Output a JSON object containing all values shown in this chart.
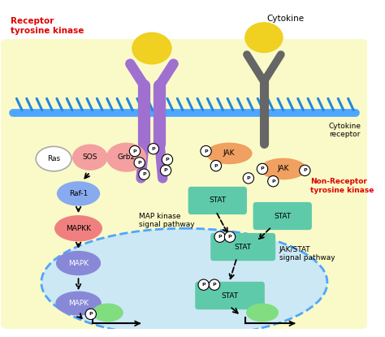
{
  "bg_outer": "#ffffff",
  "bg_cell": "#fafac8",
  "bg_nucleus": "#cce8f4",
  "membrane_color": "#4da6ff",
  "membrane_stripe_color": "#2288dd",
  "receptor_tyrosine_kinase_label": "Receptor\ntyrosine kinase",
  "cytokine_label": "Cytokine",
  "cytokine_receptor_label": "Cytokine\nreceptor",
  "non_receptor_label": "Non-Receptor\ntyrosine kinase",
  "map_kinase_label": "MAP kinase\nsignal pathway",
  "jak_stat_label": "JAK/STAT\nsignal pathway",
  "colors": {
    "purple_receptor": "#a070d0",
    "yellow_ligand": "#f0d020",
    "gray_receptor": "#666666",
    "orange_jak": "#f0a060",
    "teal_stat": "#5ecaaa",
    "salmon": "#f08080",
    "lavender": "#8888d8",
    "light_blue_node": "#88aaee",
    "white_node": "#ffffff",
    "pink_node": "#f4a0a0",
    "green_gene": "#80dd80",
    "red_label": "#dd0000",
    "dark_gray": "#555555",
    "black": "#000000",
    "p_fill": "#ffffff",
    "p_text": "#111111"
  }
}
